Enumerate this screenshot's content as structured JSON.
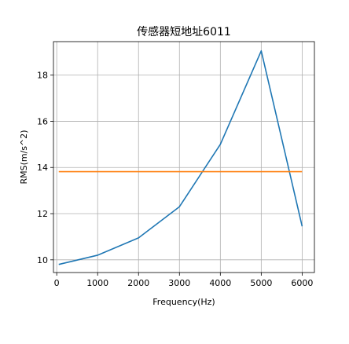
{
  "chart_data": {
    "type": "line",
    "title": "传感器短地址6011",
    "xlabel": "Frequency(Hz)",
    "ylabel": "RMS(m/s^2)",
    "xlim": [
      -80,
      6300
    ],
    "ylim": [
      9.45,
      19.45
    ],
    "xticks": [
      0,
      1000,
      2000,
      3000,
      4000,
      5000,
      6000
    ],
    "yticks": [
      10,
      12,
      14,
      16,
      18
    ],
    "grid": true,
    "series": [
      {
        "color": "#1f77b4",
        "x": [
          50,
          1000,
          2000,
          3000,
          4000,
          5000,
          6000
        ],
        "y": [
          9.8,
          10.2,
          10.95,
          12.3,
          15.0,
          19.05,
          11.45
        ]
      },
      {
        "color": "#ff7f0e",
        "x": [
          50,
          6000
        ],
        "y": [
          13.82,
          13.82
        ]
      }
    ]
  }
}
